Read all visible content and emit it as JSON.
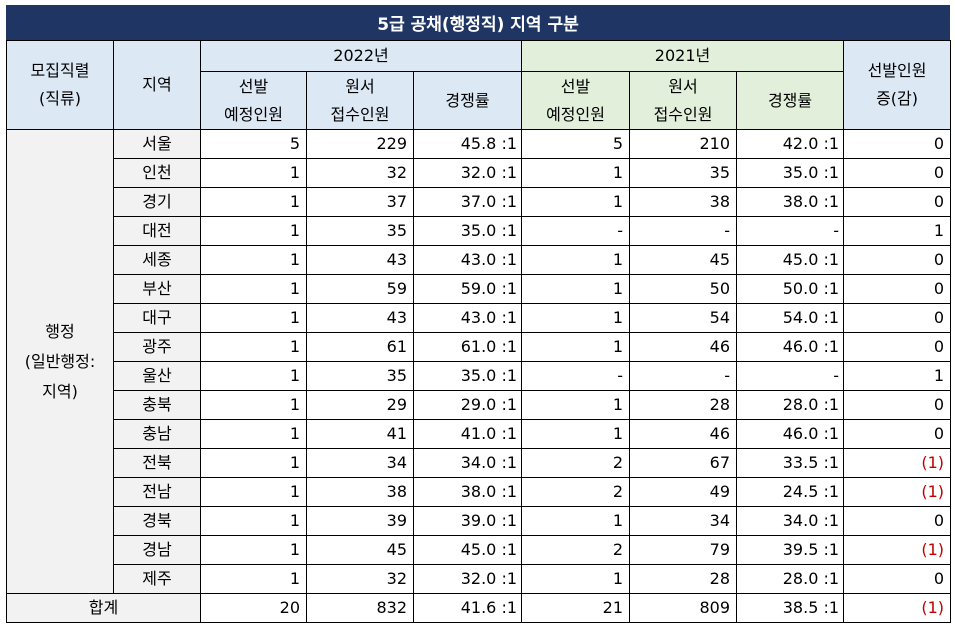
{
  "title": "5급 공채(행정직) 지역 구분",
  "header": {
    "col_job": "모집직렬\n(직류)",
    "col_region": "지역",
    "year_2022": "2022년",
    "year_2021": "2021년",
    "col_change": "선발인원\n증(감)",
    "sub_selected": "선발\n예정인원",
    "sub_applied": "원서\n접수인원",
    "sub_rate": "경쟁률"
  },
  "category": "행정\n(일반행정:\n지역)",
  "rows": [
    {
      "region": "서울",
      "s22": "5",
      "a22": "229",
      "r22": "45.8 :1",
      "s21": "5",
      "a21": "210",
      "r21": "42.0 :1",
      "chg": "0"
    },
    {
      "region": "인천",
      "s22": "1",
      "a22": "32",
      "r22": "32.0 :1",
      "s21": "1",
      "a21": "35",
      "r21": "35.0 :1",
      "chg": "0"
    },
    {
      "region": "경기",
      "s22": "1",
      "a22": "37",
      "r22": "37.0 :1",
      "s21": "1",
      "a21": "38",
      "r21": "38.0 :1",
      "chg": "0"
    },
    {
      "region": "대전",
      "s22": "1",
      "a22": "35",
      "r22": "35.0 :1",
      "s21": "-",
      "a21": "-",
      "r21": "-",
      "chg": "1"
    },
    {
      "region": "세종",
      "s22": "1",
      "a22": "43",
      "r22": "43.0 :1",
      "s21": "1",
      "a21": "45",
      "r21": "45.0 :1",
      "chg": "0"
    },
    {
      "region": "부산",
      "s22": "1",
      "a22": "59",
      "r22": "59.0 :1",
      "s21": "1",
      "a21": "50",
      "r21": "50.0 :1",
      "chg": "0"
    },
    {
      "region": "대구",
      "s22": "1",
      "a22": "43",
      "r22": "43.0 :1",
      "s21": "1",
      "a21": "54",
      "r21": "54.0 :1",
      "chg": "0"
    },
    {
      "region": "광주",
      "s22": "1",
      "a22": "61",
      "r22": "61.0 :1",
      "s21": "1",
      "a21": "46",
      "r21": "46.0 :1",
      "chg": "0"
    },
    {
      "region": "울산",
      "s22": "1",
      "a22": "35",
      "r22": "35.0 :1",
      "s21": "-",
      "a21": "-",
      "r21": "-",
      "chg": "1"
    },
    {
      "region": "충북",
      "s22": "1",
      "a22": "29",
      "r22": "29.0 :1",
      "s21": "1",
      "a21": "28",
      "r21": "28.0 :1",
      "chg": "0"
    },
    {
      "region": "충남",
      "s22": "1",
      "a22": "41",
      "r22": "41.0 :1",
      "s21": "1",
      "a21": "46",
      "r21": "46.0 :1",
      "chg": "0"
    },
    {
      "region": "전북",
      "s22": "1",
      "a22": "34",
      "r22": "34.0 :1",
      "s21": "2",
      "a21": "67",
      "r21": "33.5 :1",
      "chg": "(1)"
    },
    {
      "region": "전남",
      "s22": "1",
      "a22": "38",
      "r22": "38.0 :1",
      "s21": "2",
      "a21": "49",
      "r21": "24.5 :1",
      "chg": "(1)"
    },
    {
      "region": "경북",
      "s22": "1",
      "a22": "39",
      "r22": "39.0 :1",
      "s21": "1",
      "a21": "34",
      "r21": "34.0 :1",
      "chg": "0"
    },
    {
      "region": "경남",
      "s22": "1",
      "a22": "45",
      "r22": "45.0 :1",
      "s21": "2",
      "a21": "79",
      "r21": "39.5 :1",
      "chg": "(1)"
    },
    {
      "region": "제주",
      "s22": "1",
      "a22": "32",
      "r22": "32.0 :1",
      "s21": "1",
      "a21": "28",
      "r21": "28.0 :1",
      "chg": "0"
    }
  ],
  "total": {
    "label": "합계",
    "s22": "20",
    "a22": "832",
    "r22": "41.6 :1",
    "s21": "21",
    "a21": "809",
    "r21": "38.5 :1",
    "chg": "(1)"
  },
  "colors": {
    "title_bg": "#1f3564",
    "header_2022": "#dde8f5",
    "header_2021": "#e2efda",
    "negative": "#c00000"
  }
}
